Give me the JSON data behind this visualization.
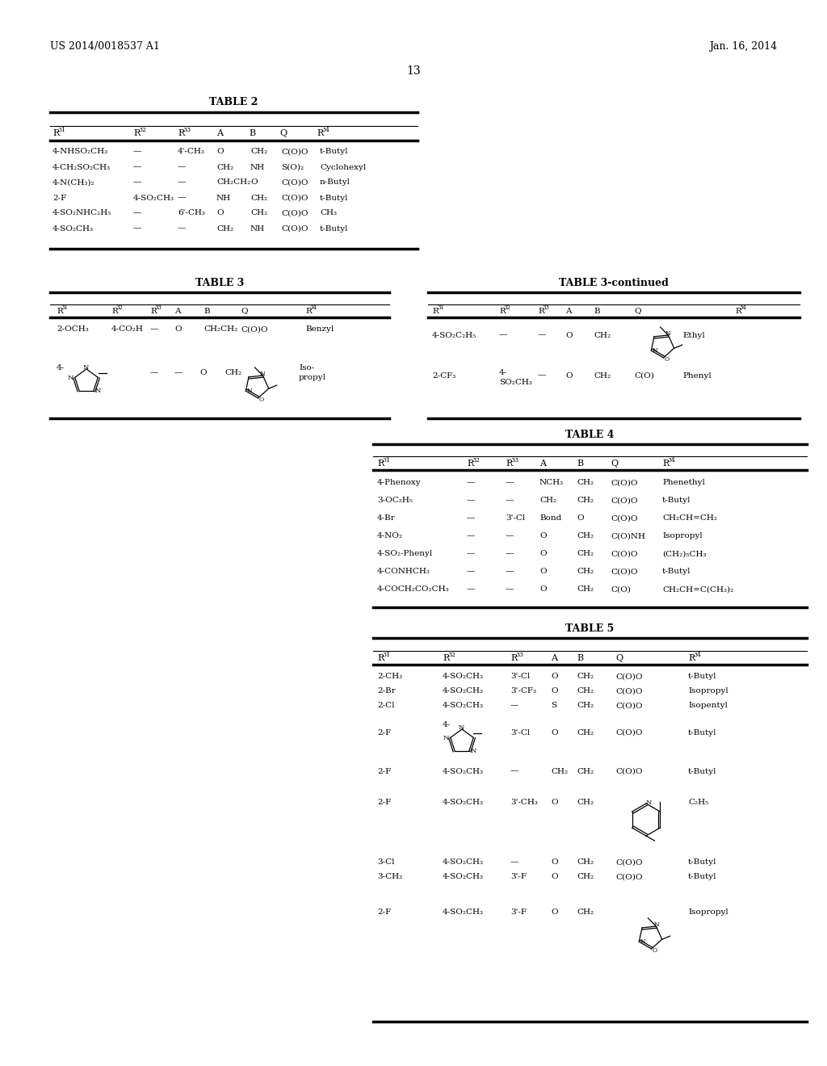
{
  "bg_color": "#ffffff",
  "header_left": "US 2014/0018537 A1",
  "header_right": "Jan. 16, 2014",
  "page_num": "13"
}
